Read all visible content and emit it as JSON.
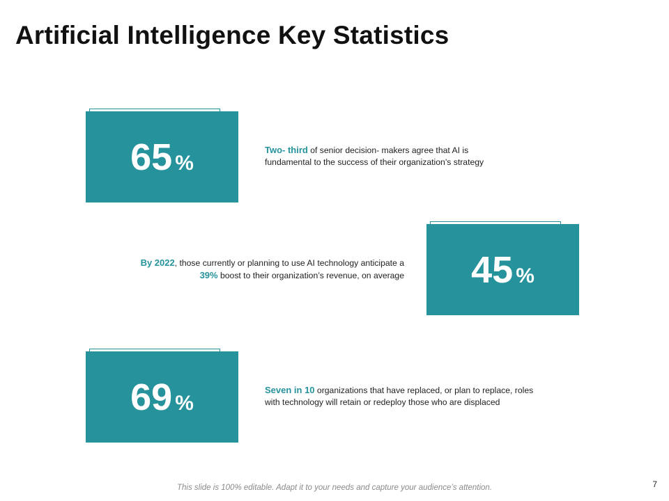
{
  "slide": {
    "title": "Artificial Intelligence Key Statistics",
    "footer": "This slide is 100% editable. Adapt it to your needs and capture your audience’s attention.",
    "page_number": "7",
    "accent_color": "#26939c"
  },
  "stats": [
    {
      "value": "65",
      "unit": "%",
      "highlight": "Two- third",
      "line1_rest": " of senior decision- makers  agree  that AI is",
      "line2": "fundamental  to the success of their organization’s  strategy"
    },
    {
      "value": "45",
      "unit": "%",
      "highlight": "By 2022",
      "line1_rest": ", those currently or planning to use AI technology anticipate a",
      "highlight2": "39%",
      "line2_rest": " boost to their organization’s revenue, on average"
    },
    {
      "value": "69",
      "unit": "%",
      "highlight": "Seven in 10",
      "line1_rest": " organizations that have replaced, or plan to replace, roles",
      "line2": "with technology will retain or redeploy those who are displaced"
    }
  ]
}
